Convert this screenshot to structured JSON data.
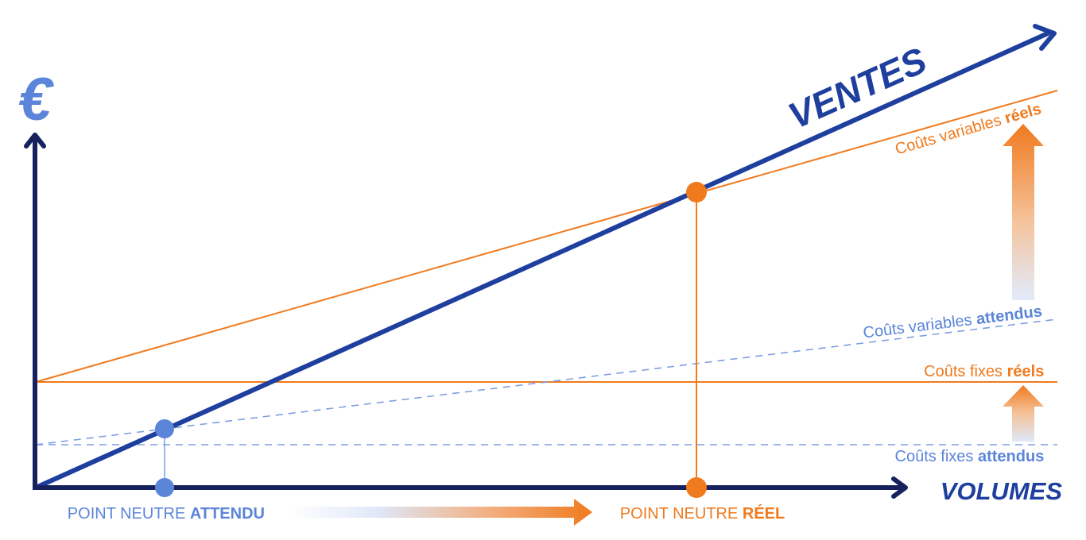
{
  "axes": {
    "y_symbol": "€",
    "x_label": "VOLUMES"
  },
  "sales": {
    "label": "VENTES"
  },
  "cost_labels": {
    "variable_real_prefix": "Coûts variables ",
    "variable_real_bold": "réels",
    "variable_expected_prefix": "Coûts variables ",
    "variable_expected_bold": "attendus",
    "fixed_real_prefix": "Coûts fixes ",
    "fixed_real_bold": "réels",
    "fixed_expected_prefix": "Coûts fixes ",
    "fixed_expected_bold": "attendus"
  },
  "breakeven": {
    "expected_prefix": "POINT NEUTRE ",
    "expected_bold": "ATTENDU",
    "real_prefix": "POINT NEUTRE ",
    "real_bold": "RÉEL"
  },
  "colors": {
    "axis": "#16215e",
    "sales": "#1f3f9f",
    "real": "#f07a1e",
    "expected": "#5b85d9",
    "expected_light": "#b9cbf0"
  }
}
